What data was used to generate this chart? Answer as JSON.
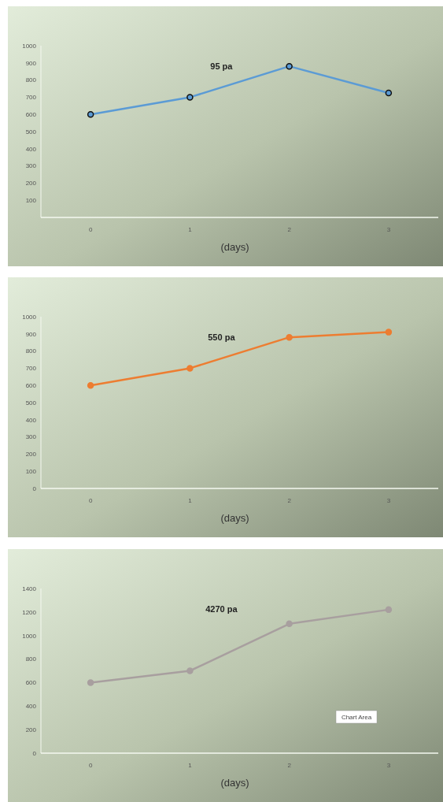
{
  "chart_data": [
    {
      "type": "line",
      "title": "95 pa",
      "xlabel": "(days)",
      "categories": [
        "0",
        "1",
        "2",
        "3"
      ],
      "series": [
        {
          "color": "#5b9bd5",
          "values": [
            600,
            700,
            880,
            725
          ]
        }
      ],
      "ylim": [
        0,
        1000
      ],
      "yticks": [
        100,
        200,
        300,
        400,
        500,
        600,
        700,
        800,
        900,
        1000
      ],
      "marker": "circle",
      "grid": false
    },
    {
      "type": "line",
      "title": "550 pa",
      "xlabel": "(days)",
      "categories": [
        "0",
        "1",
        "2",
        "3"
      ],
      "series": [
        {
          "color": "#ed7d31",
          "values": [
            600,
            700,
            880,
            910
          ]
        }
      ],
      "ylim": [
        0,
        1000
      ],
      "yticks": [
        0,
        100,
        200,
        300,
        400,
        500,
        600,
        700,
        800,
        900,
        1000
      ],
      "marker": "circle",
      "grid": false
    },
    {
      "type": "line",
      "title": "4270 pa",
      "xlabel": "(days)",
      "categories": [
        "0",
        "1",
        "2",
        "3"
      ],
      "series": [
        {
          "color": "#a89f9f",
          "values": [
            600,
            700,
            1100,
            1220
          ]
        }
      ],
      "ylim": [
        0,
        1400
      ],
      "yticks": [
        0,
        200,
        400,
        600,
        800,
        1000,
        1200,
        1400
      ],
      "marker": "circle",
      "grid": false,
      "annotations": [
        "Chart Area"
      ]
    }
  ]
}
